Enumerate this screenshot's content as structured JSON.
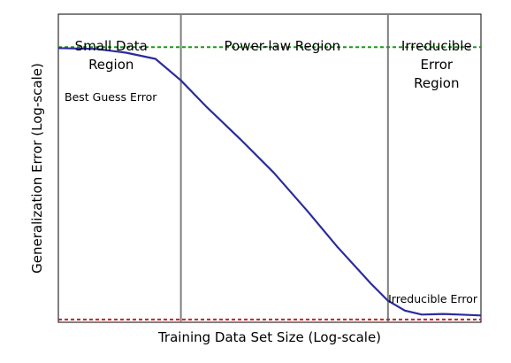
{
  "chart_data": {
    "type": "line",
    "xlabel": "Training Data Set Size (Log-scale)",
    "ylabel": "Generalization Error (Log-scale)",
    "xlim": [
      0,
      10
    ],
    "ylim": [
      0,
      10
    ],
    "grid": false,
    "series": [
      {
        "color": "#2b2b9c",
        "x": [
          0.0,
          0.9,
          1.6,
          2.3,
          2.9,
          3.5,
          4.3,
          5.1,
          5.9,
          6.6,
          7.4,
          7.8,
          8.2,
          8.6,
          9.1,
          9.5,
          10.0
        ],
        "y": [
          8.9,
          8.87,
          8.75,
          8.55,
          7.85,
          7.0,
          5.95,
          4.85,
          3.6,
          2.45,
          1.25,
          0.7,
          0.38,
          0.25,
          0.27,
          0.25,
          0.22
        ]
      }
    ],
    "reference_lines": [
      {
        "label": "Best Guess Error",
        "y": 8.93,
        "color": "#1a9a1a",
        "style": "dashed"
      },
      {
        "label": "Irreducible Error",
        "y": 0.09,
        "color": "#cc1f1f",
        "style": "dashed"
      }
    ],
    "region_dividers": {
      "x": [
        2.9,
        7.8
      ],
      "color": "#808080"
    },
    "regions": [
      {
        "lines": [
          "Small Data",
          "Region"
        ],
        "x_center": 1.25
      },
      {
        "lines": [
          "Power-law Region"
        ],
        "x_center": 5.3
      },
      {
        "lines": [
          "Irreducible",
          "Error",
          "Region"
        ],
        "x_center": 8.95
      }
    ]
  }
}
